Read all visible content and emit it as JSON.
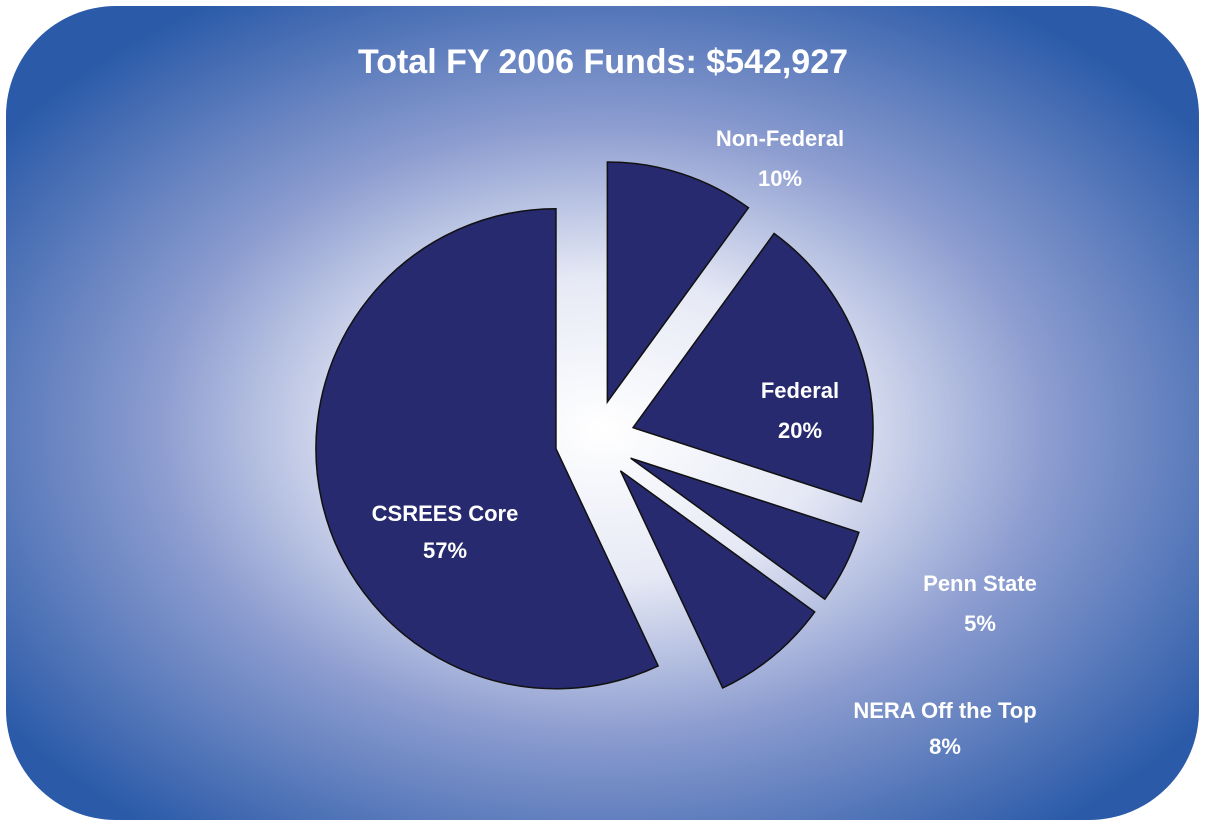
{
  "chart_data": {
    "type": "pie",
    "title": "Total FY 2006 Funds: $542,927",
    "categories": [
      "Non-Federal",
      "Federal",
      "Penn State",
      "NERA Off the Top",
      "CSREES Core"
    ],
    "values": [
      10,
      20,
      5,
      8,
      57
    ],
    "value_labels": [
      "10%",
      "20%",
      "5%",
      "8%",
      "57%"
    ],
    "color": "#272a6e"
  }
}
